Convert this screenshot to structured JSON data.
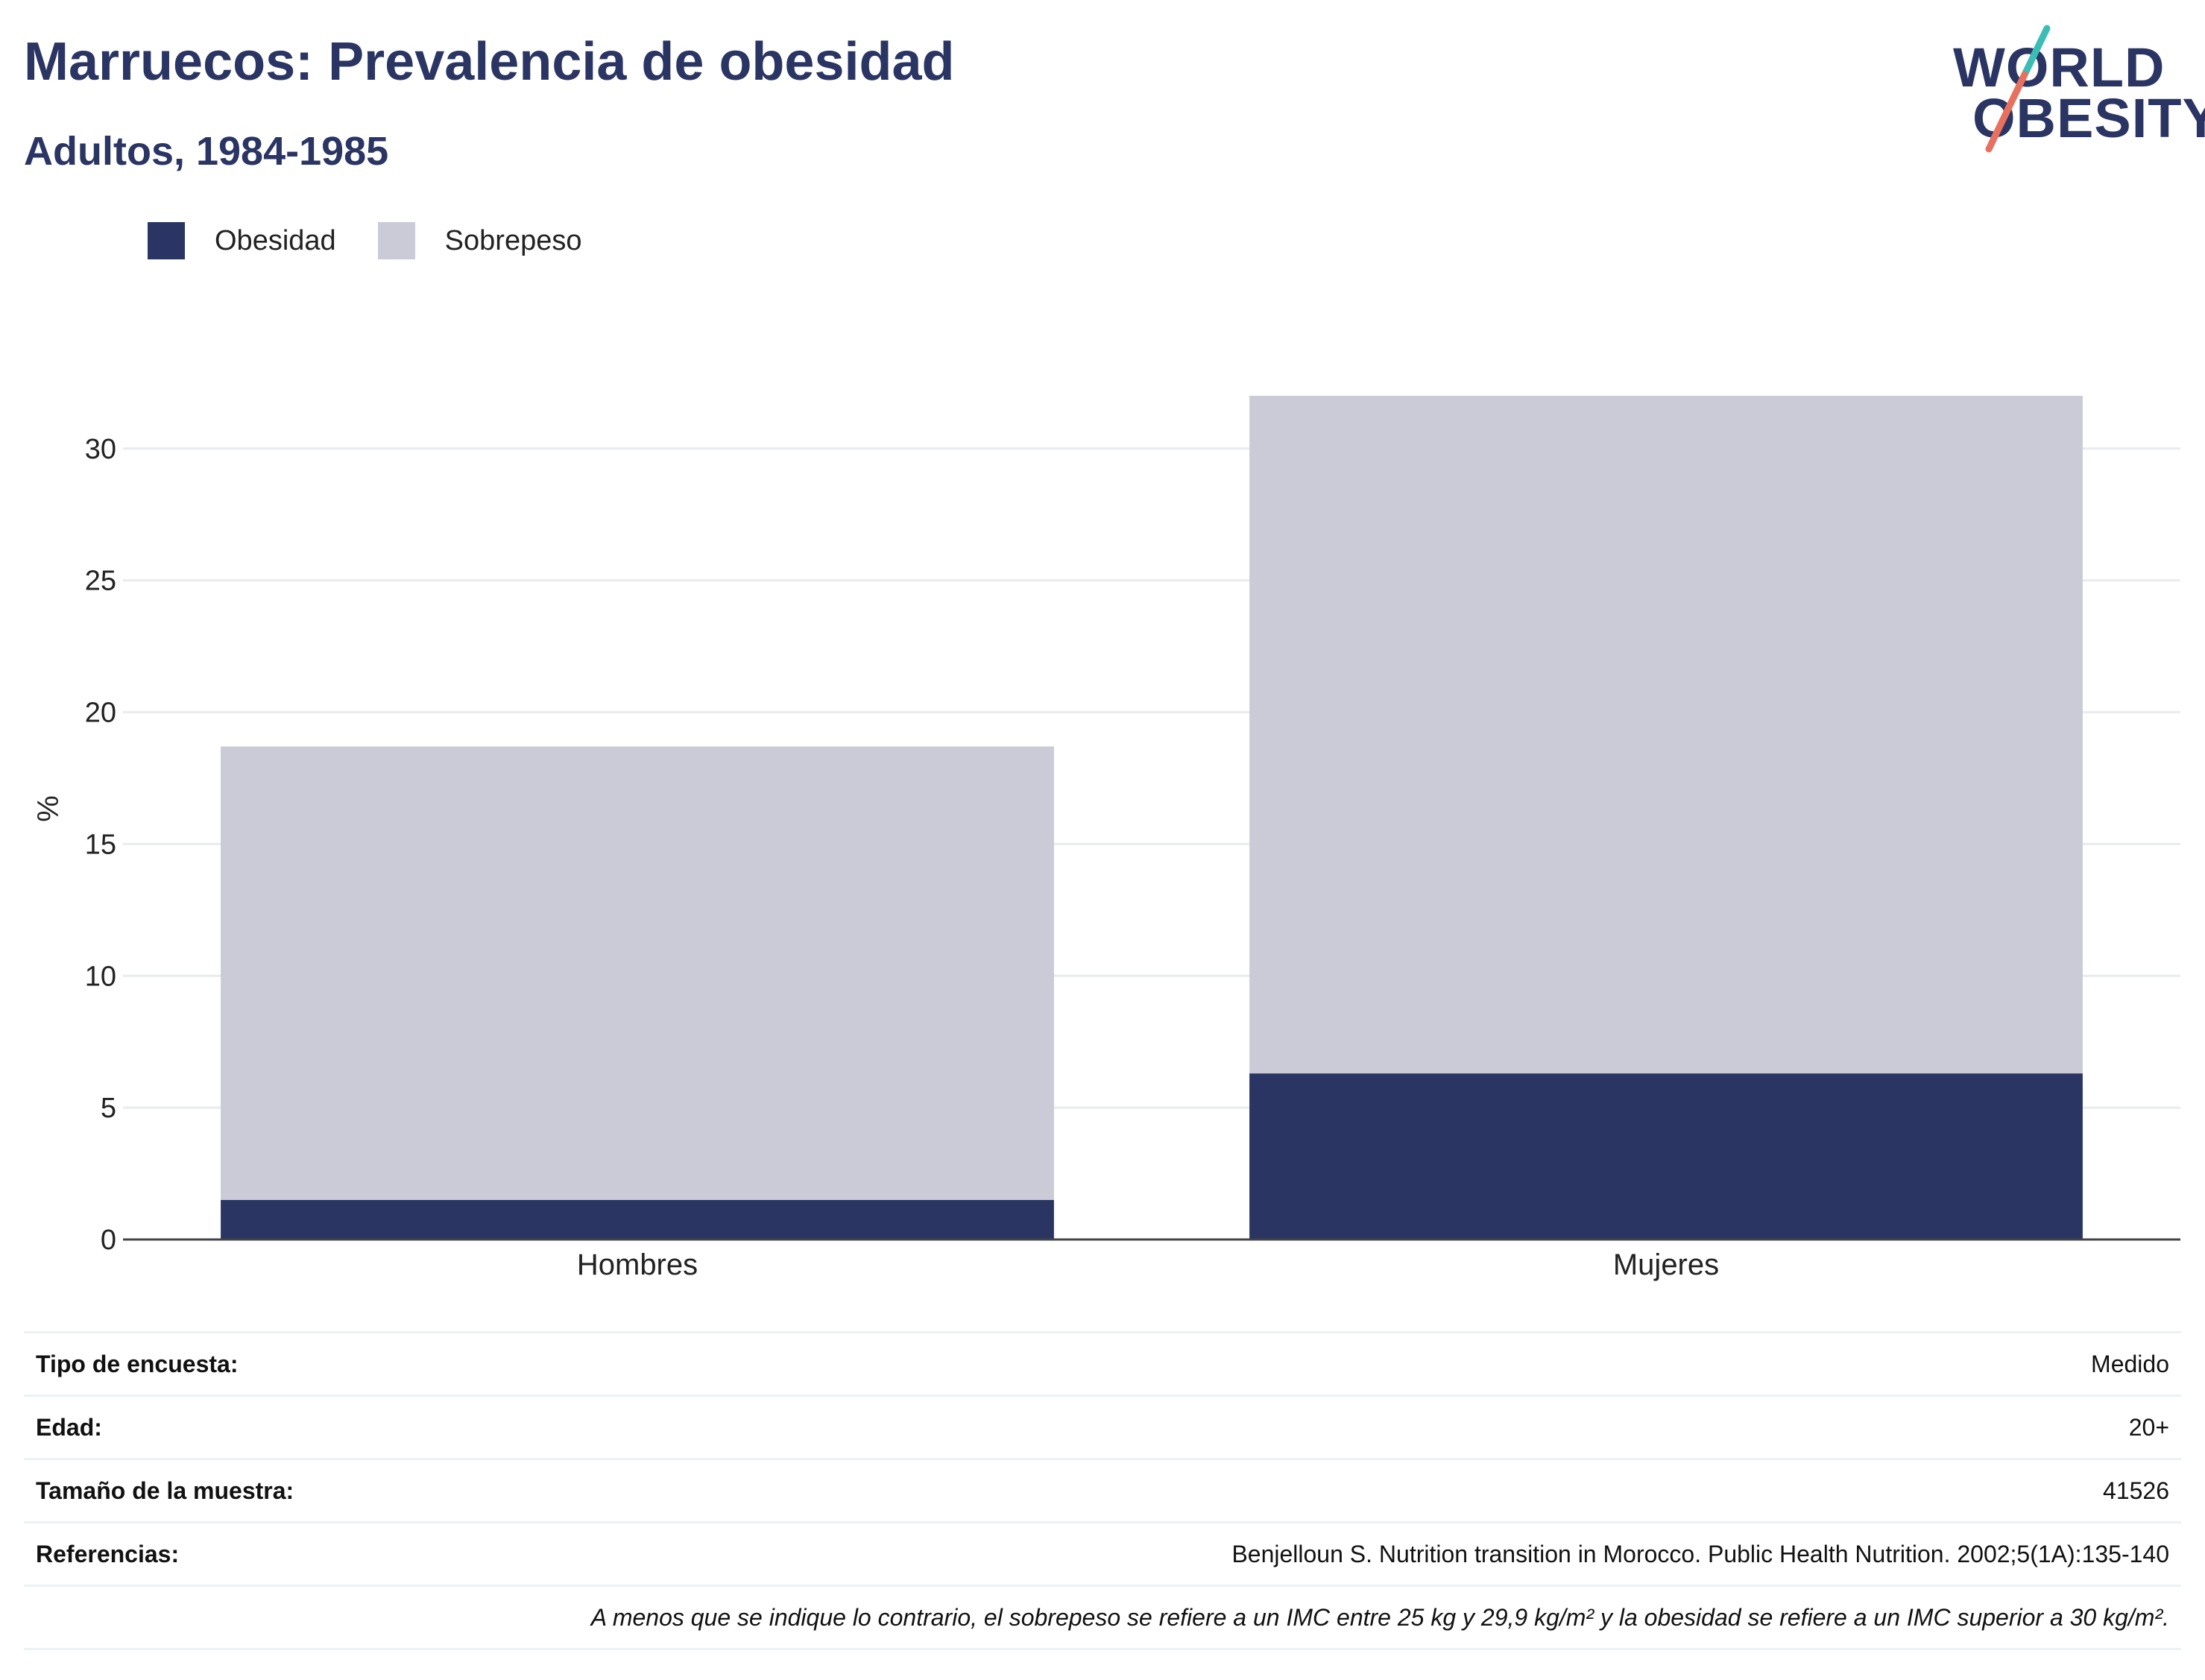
{
  "header": {
    "title": "Marruecos: Prevalencia de obesidad",
    "subtitle": "Adultos, 1984-1985"
  },
  "logo": {
    "line1": "WORLD",
    "line2": "OBESITY"
  },
  "colors": {
    "obesity": "#2a3563",
    "overweight": "#cacbd7",
    "text": "#2a3563",
    "axis": "#444444",
    "grid": "#e9ebee"
  },
  "chart_data": {
    "type": "bar",
    "stacked": true,
    "categories": [
      "Hombres",
      "Mujeres"
    ],
    "series": [
      {
        "name": "Obesidad",
        "values": [
          1.5,
          6.3
        ]
      },
      {
        "name": "Sobrepeso",
        "values": [
          17.2,
          25.7
        ]
      }
    ],
    "ylabel": "%",
    "ylim": [
      0,
      32
    ],
    "yticks": [
      0,
      5,
      10,
      15,
      20,
      25,
      30
    ],
    "grid": true,
    "legend_position": "top-left"
  },
  "info": {
    "rows": [
      {
        "key": "Tipo de encuesta:",
        "value": "Medido"
      },
      {
        "key": "Edad:",
        "value": "20+"
      },
      {
        "key": "Tamaño de la muestra:",
        "value": "41526"
      },
      {
        "key": "Referencias:",
        "value": "Benjelloun S. Nutrition transition in Morocco. Public Health Nutrition. 2002;5(1A):135-140"
      }
    ],
    "note": "A menos que se indique lo contrario, el sobrepeso se refiere a un IMC entre 25 kg y 29,9 kg/m² y la obesidad se refiere a un IMC superior a 30 kg/m²."
  }
}
